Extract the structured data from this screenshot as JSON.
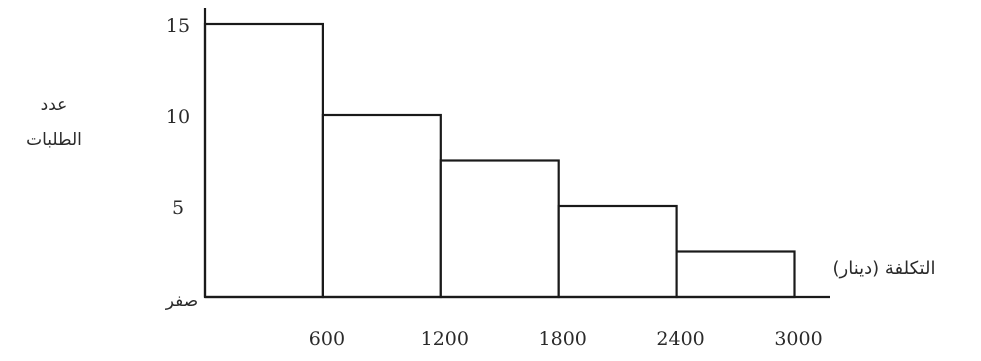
{
  "chart_data": {
    "type": "bar",
    "title": "",
    "xlabel": "التكلفة (دينار)",
    "ylabel": [
      "عدد",
      "الطلبات"
    ],
    "x_ticks": [
      "600",
      "1200",
      "1800",
      "2400",
      "3000"
    ],
    "y_ticks": [
      "15",
      "10",
      "5"
    ],
    "zero_label": "صفر",
    "bins": [
      {
        "from": 0,
        "to": 600,
        "value": 15
      },
      {
        "from": 600,
        "to": 1200,
        "value": 10
      },
      {
        "from": 1200,
        "to": 1800,
        "value": 7.5
      },
      {
        "from": 1800,
        "to": 2400,
        "value": 5
      },
      {
        "from": 2400,
        "to": 3000,
        "value": 2.5
      }
    ],
    "xlim": [
      0,
      3000
    ],
    "ylim": [
      0,
      15
    ],
    "grid": false,
    "legend": "none"
  }
}
